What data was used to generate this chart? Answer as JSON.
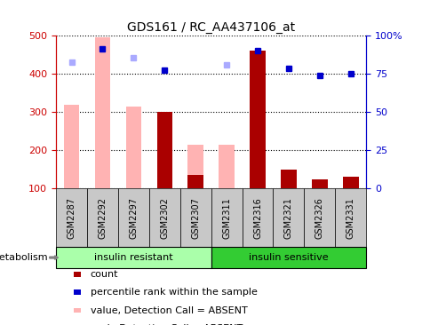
{
  "title": "GDS161 / RC_AA437106_at",
  "samples": [
    "GSM2287",
    "GSM2292",
    "GSM2297",
    "GSM2302",
    "GSM2307",
    "GSM2311",
    "GSM2316",
    "GSM2321",
    "GSM2326",
    "GSM2331"
  ],
  "ylim_left": [
    100,
    500
  ],
  "ylim_right": [
    0,
    100
  ],
  "yticks_left": [
    100,
    200,
    300,
    400,
    500
  ],
  "yticks_right": [
    0,
    25,
    50,
    75,
    100
  ],
  "ytick_labels_right": [
    "0",
    "25",
    "50",
    "75",
    "100%"
  ],
  "pink_bars": {
    "GSM2287": 320,
    "GSM2292": 495,
    "GSM2297": 315,
    "GSM2307": 215,
    "GSM2311": 215
  },
  "dark_red_bars": {
    "GSM2302": 300,
    "GSM2307": 135,
    "GSM2316": 462,
    "GSM2321": 150,
    "GSM2326": 125,
    "GSM2331": 132
  },
  "blue_squares": {
    "GSM2292": 465,
    "GSM2302": 410,
    "GSM2316": 460,
    "GSM2321": 415,
    "GSM2326": 395,
    "GSM2331": 400
  },
  "light_blue_squares": {
    "GSM2287": 430,
    "GSM2297": 443,
    "GSM2311": 423
  },
  "colors": {
    "pink_bar": "#FFB3B3",
    "dark_red_bar": "#AA0000",
    "blue_square": "#0000CC",
    "light_blue_square": "#AAAAFF",
    "insulin_resistant_bg": "#AAFFAA",
    "insulin_sensitive_bg": "#33CC33",
    "gray_sample": "#C8C8C8",
    "axis_left_color": "#CC0000",
    "axis_right_color": "#0000CC"
  },
  "legend": [
    {
      "label": "count",
      "color": "#AA0000"
    },
    {
      "label": "percentile rank within the sample",
      "color": "#0000CC"
    },
    {
      "label": "value, Detection Call = ABSENT",
      "color": "#FFB3B3"
    },
    {
      "label": "rank, Detection Call = ABSENT",
      "color": "#AAAAFF"
    }
  ],
  "bar_width": 0.5,
  "bar_bottom": 100,
  "n_insulin_resistant": 5,
  "n_insulin_sensitive": 5
}
